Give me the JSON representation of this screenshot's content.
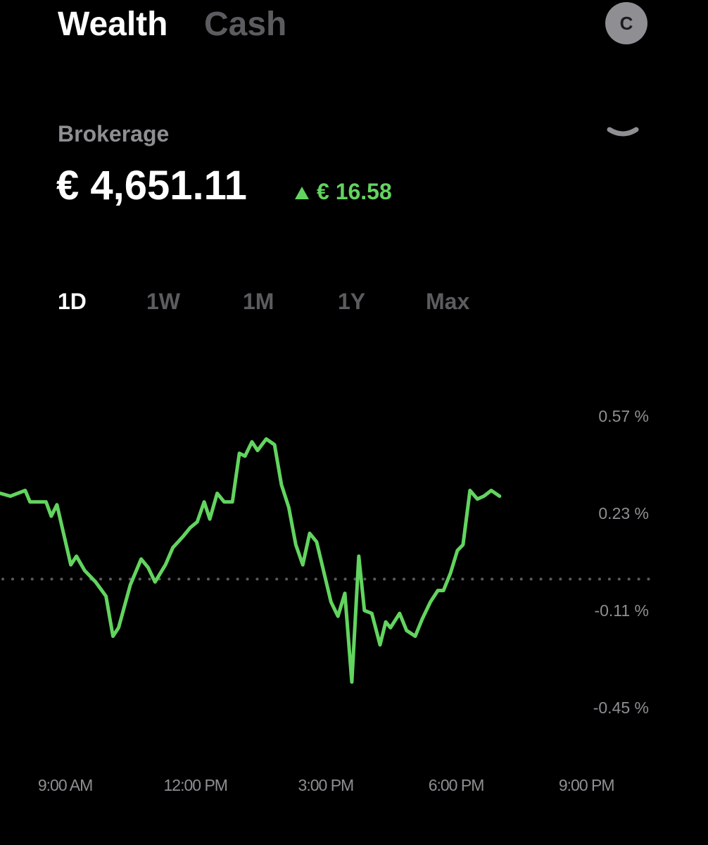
{
  "tabs": [
    "Wealth",
    "Cash"
  ],
  "active_tab_index": 0,
  "avatar": "C",
  "account": "Brokerage",
  "balance": "€ 4,651.11",
  "change": "€ 16.58",
  "ranges": [
    "1D",
    "1W",
    "1M",
    "1Y",
    "Max"
  ],
  "active_range_index": 0,
  "chart_data": {
    "type": "line",
    "x": [
      7.51,
      7.74,
      8.08,
      8.19,
      8.32,
      8.56,
      8.68,
      8.81,
      9.13,
      9.26,
      9.45,
      9.7,
      9.94,
      10.1,
      10.23,
      10.5,
      10.75,
      10.91,
      11.07,
      11.31,
      11.48,
      11.72,
      11.88,
      12.04,
      12.2,
      12.33,
      12.5,
      12.66,
      12.85,
      13.01,
      13.14,
      13.3,
      13.43,
      13.63,
      13.82,
      13.98,
      14.15,
      14.31,
      14.47,
      14.63,
      14.79,
      15.12,
      15.28,
      15.44,
      15.6,
      15.76,
      15.89,
      16.06,
      16.25,
      16.38,
      16.49,
      16.7,
      16.86,
      17.06,
      17.22,
      17.41,
      17.58,
      17.71,
      17.87,
      18.03,
      18.16,
      18.32,
      18.49,
      18.64,
      18.81,
      19.0
    ],
    "series": [
      {
        "color": "#62d45f",
        "values": [
          0.3,
          0.29,
          0.31,
          0.27,
          0.27,
          0.27,
          0.22,
          0.26,
          0.05,
          0.08,
          0.03,
          -0.01,
          -0.06,
          -0.2,
          -0.17,
          -0.02,
          0.07,
          0.04,
          -0.01,
          0.05,
          0.11,
          0.15,
          0.18,
          0.2,
          0.27,
          0.21,
          0.3,
          0.27,
          0.27,
          0.44,
          0.43,
          0.48,
          0.45,
          0.49,
          0.47,
          0.33,
          0.25,
          0.12,
          0.05,
          0.16,
          0.13,
          -0.08,
          -0.13,
          -0.05,
          -0.36,
          0.08,
          -0.11,
          -0.12,
          -0.23,
          -0.15,
          -0.17,
          -0.12,
          -0.18,
          -0.2,
          -0.14,
          -0.08,
          -0.04,
          -0.04,
          0.02,
          0.1,
          0.12,
          0.31,
          0.28,
          0.29,
          0.31,
          0.29
        ]
      }
    ],
    "baseline": 0,
    "xlim": [
      7.5,
      23.8
    ],
    "xticks": [
      {
        "value": 9,
        "label": "9:00 AM"
      },
      {
        "value": 12,
        "label": "12:00 PM"
      },
      {
        "value": 15,
        "label": "3:00 PM"
      },
      {
        "value": 18,
        "label": "6:00 PM"
      },
      {
        "value": 21,
        "label": "9:00 PM"
      }
    ],
    "ylim": [
      -0.6,
      0.65
    ],
    "yticks": [
      {
        "value": 0.57,
        "label": "0.57 %"
      },
      {
        "value": 0.23,
        "label": "0.23 %"
      },
      {
        "value": -0.11,
        "label": "-0.11 %"
      },
      {
        "value": -0.45,
        "label": "-0.45 %"
      }
    ]
  }
}
